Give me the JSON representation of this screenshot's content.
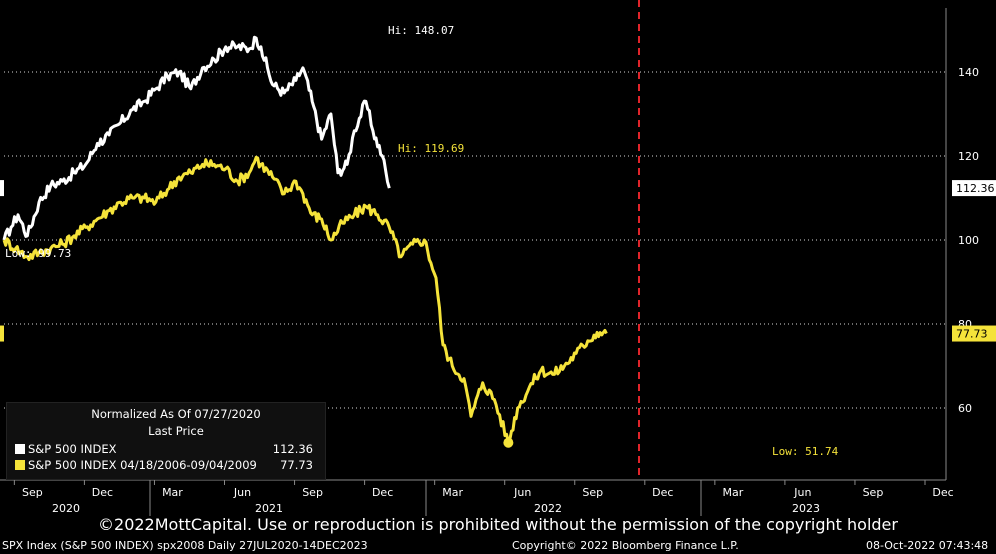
{
  "chart_data": {
    "type": "line",
    "x_axis": {
      "ticks": [
        "Sep",
        "Dec",
        "Mar",
        "Jun",
        "Sep",
        "Dec",
        "Mar",
        "Jun",
        "Sep",
        "Dec",
        "Mar",
        "Jun",
        "Sep",
        "Dec"
      ],
      "years": [
        "2020",
        "2021",
        "2022",
        "2023"
      ],
      "range": [
        "27JUL2020",
        "14DEC2023"
      ]
    },
    "y_axis": {
      "ticks": [
        60,
        80,
        100,
        120,
        140
      ],
      "range": [
        45,
        155
      ]
    },
    "vertical_marker": {
      "label": "",
      "style": "dashed",
      "color": "#e0242a"
    },
    "series": [
      {
        "name": "S&P 500 INDEX",
        "color": "#ffffff",
        "last_value": "112.36",
        "points": [
          [
            0,
            100
          ],
          [
            0.3,
            103
          ],
          [
            0.6,
            106
          ],
          [
            1.0,
            101
          ],
          [
            1.5,
            109
          ],
          [
            2.0,
            113
          ],
          [
            2.5,
            114
          ],
          [
            3.0,
            116
          ],
          [
            3.5,
            118
          ],
          [
            4.0,
            123
          ],
          [
            4.5,
            125
          ],
          [
            5.0,
            128
          ],
          [
            5.5,
            131
          ],
          [
            6.0,
            133
          ],
          [
            6.5,
            136
          ],
          [
            7.0,
            139
          ],
          [
            7.5,
            140
          ],
          [
            8.0,
            136
          ],
          [
            8.5,
            141
          ],
          [
            9.0,
            143
          ],
          [
            9.5,
            146
          ],
          [
            10.0,
            146
          ],
          [
            10.5,
            145.5
          ],
          [
            10.8,
            148.07
          ],
          [
            11.0,
            146
          ],
          [
            11.5,
            137
          ],
          [
            12.0,
            135
          ],
          [
            12.5,
            138
          ],
          [
            12.8,
            141
          ],
          [
            13.2,
            133
          ],
          [
            13.6,
            124
          ],
          [
            14.0,
            130
          ],
          [
            14.3,
            116
          ],
          [
            14.7,
            118
          ],
          [
            15.0,
            126
          ],
          [
            15.5,
            133
          ],
          [
            15.8,
            126
          ],
          [
            16.2,
            120
          ],
          [
            16.5,
            112.36
          ]
        ],
        "hi_label": "Hi: 148.07",
        "low_label": "Low: 99.73"
      },
      {
        "name": "S&P 500 INDEX 04/18/2006-09/04/2009",
        "color": "#f5e33a",
        "last_value": "77.73",
        "points": [
          [
            0,
            100
          ],
          [
            0.5,
            98
          ],
          [
            1.0,
            96
          ],
          [
            1.5,
            97
          ],
          [
            2.0,
            98
          ],
          [
            2.5,
            99
          ],
          [
            3.0,
            101
          ],
          [
            3.5,
            103
          ],
          [
            4.0,
            105
          ],
          [
            4.5,
            107
          ],
          [
            5.0,
            109
          ],
          [
            5.5,
            110
          ],
          [
            6.0,
            110
          ],
          [
            6.5,
            109
          ],
          [
            7.0,
            112
          ],
          [
            7.5,
            115
          ],
          [
            8.0,
            116
          ],
          [
            8.5,
            118
          ],
          [
            9.0,
            118
          ],
          [
            9.5,
            117
          ],
          [
            10.0,
            114
          ],
          [
            10.5,
            116
          ],
          [
            10.8,
            119.69
          ],
          [
            11.0,
            118
          ],
          [
            11.5,
            115
          ],
          [
            12.0,
            111
          ],
          [
            12.5,
            114
          ],
          [
            12.8,
            111
          ],
          [
            13.2,
            106
          ],
          [
            13.6,
            105
          ],
          [
            14.0,
            100
          ],
          [
            14.5,
            104
          ],
          [
            15.0,
            106
          ],
          [
            15.5,
            108
          ],
          [
            16.0,
            106
          ],
          [
            16.5,
            103
          ],
          [
            17.0,
            96
          ],
          [
            17.5,
            99
          ],
          [
            18.0,
            100
          ],
          [
            18.5,
            91
          ],
          [
            18.8,
            75
          ],
          [
            19.2,
            70
          ],
          [
            19.7,
            67
          ],
          [
            20.0,
            58
          ],
          [
            20.5,
            66
          ],
          [
            21.0,
            62
          ],
          [
            21.6,
            51.74
          ],
          [
            22.0,
            60
          ],
          [
            22.5,
            65
          ],
          [
            23.0,
            69
          ],
          [
            23.5,
            68
          ],
          [
            24.0,
            70
          ],
          [
            24.5,
            73
          ],
          [
            25.0,
            76
          ],
          [
            25.4,
            78
          ],
          [
            25.8,
            77.73
          ]
        ],
        "hi_label": "Hi: 119.69",
        "low_label": "Low: 51.74"
      }
    ]
  },
  "legend": {
    "title": "Normalized As Of 07/27/2020",
    "subtitle": "Last Price",
    "rows": [
      {
        "name": "S&P 500 INDEX",
        "value": "112.36",
        "color": "#ffffff"
      },
      {
        "name": "S&P 500 INDEX 04/18/2006-09/04/2009",
        "value": "77.73",
        "color": "#f5e33a"
      }
    ]
  },
  "copyright_overlay": "©2022MottCapital. Use or reproduction is prohibited without the permission of the copyright holder",
  "footer": {
    "left": "SPX Index (S&P 500 INDEX) spx2008  Daily 27JUL2020-14DEC2023",
    "center": "Copyright© 2022 Bloomberg Finance L.P.",
    "right": "08-Oct-2022 07:43:48"
  }
}
